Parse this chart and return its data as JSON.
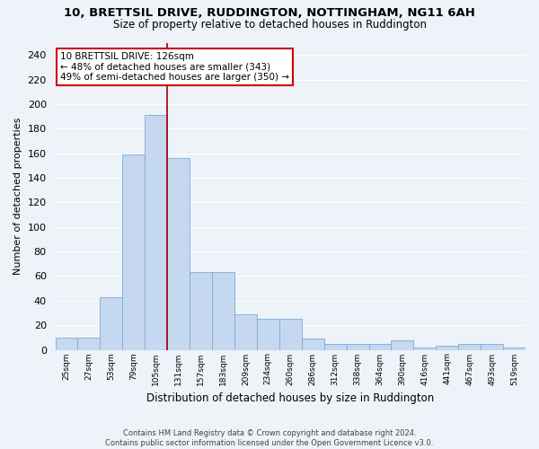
{
  "title": "10, BRETTSIL DRIVE, RUDDINGTON, NOTTINGHAM, NG11 6AH",
  "subtitle": "Size of property relative to detached houses in Ruddington",
  "xlabel": "Distribution of detached houses by size in Ruddington",
  "ylabel": "Number of detached properties",
  "bar_color": "#c5d8f0",
  "bar_edge_color": "#7aadd4",
  "bin_labels": [
    "25sqm",
    "27sqm",
    "53sqm",
    "79sqm",
    "105sqm",
    "131sqm",
    "157sqm",
    "183sqm",
    "209sqm",
    "234sqm",
    "260sqm",
    "286sqm",
    "312sqm",
    "338sqm",
    "364sqm",
    "390sqm",
    "416sqm",
    "441sqm",
    "467sqm",
    "493sqm",
    "519sqm"
  ],
  "bar_heights": [
    10,
    10,
    43,
    159,
    191,
    156,
    63,
    63,
    29,
    25,
    25,
    9,
    5,
    5,
    5,
    8,
    2,
    3,
    5,
    5,
    2
  ],
  "ylim": [
    0,
    250
  ],
  "yticks": [
    0,
    20,
    40,
    60,
    80,
    100,
    120,
    140,
    160,
    180,
    200,
    220,
    240
  ],
  "property_line_x": 4.5,
  "annotation_title": "10 BRETTSIL DRIVE: 126sqm",
  "annotation_line1": "← 48% of detached houses are smaller (343)",
  "annotation_line2": "49% of semi-detached houses are larger (350) →",
  "annotation_box_color": "#ffffff",
  "annotation_box_edge_color": "#cc0000",
  "vline_color": "#990000",
  "footer1": "Contains HM Land Registry data © Crown copyright and database right 2024.",
  "footer2": "Contains public sector information licensed under the Open Government Licence v3.0.",
  "bg_color": "#eef2f9",
  "grid_color": "#ffffff"
}
